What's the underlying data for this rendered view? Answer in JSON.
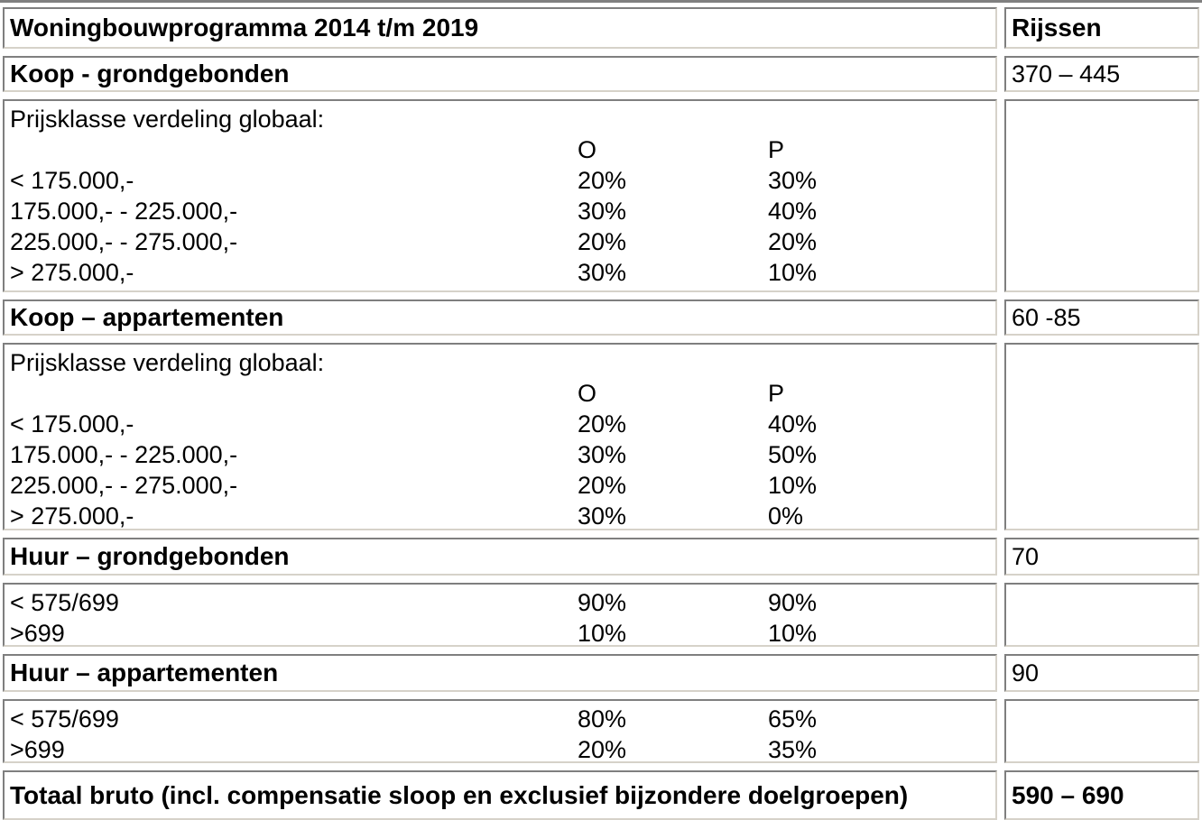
{
  "title_row": {
    "title": "Woningbouwprogramma 2014 t/m 2019",
    "region": "Rijssen"
  },
  "sections": [
    {
      "header": "Koop - grondgebonden",
      "value": "370 – 445",
      "detail": {
        "intro": "Prijsklasse verdeling globaal:",
        "col_o": "O",
        "col_p": "P",
        "rows": [
          {
            "label": "< 175.000,-",
            "o": "20%",
            "p": "30%"
          },
          {
            "label": "175.000,- - 225.000,-",
            "o": "30%",
            "p": "40%"
          },
          {
            "label": "225.000,- - 275.000,-",
            "o": "20%",
            "p": "20%"
          },
          {
            "label": "> 275.000,-",
            "o": "30%",
            "p": "10%"
          }
        ]
      }
    },
    {
      "header": "Koop – appartementen",
      "value": "60 -85",
      "detail": {
        "intro": "Prijsklasse verdeling globaal:",
        "col_o": "O",
        "col_p": "P",
        "rows": [
          {
            "label": "< 175.000,-",
            "o": "20%",
            "p": "40%"
          },
          {
            "label": "175.000,- - 225.000,-",
            "o": "30%",
            "p": "50%"
          },
          {
            "label": "225.000,- - 275.000,-",
            "o": "20%",
            "p": "10%"
          },
          {
            "label": "> 275.000,-",
            "o": "30%",
            "p": "0%"
          }
        ]
      }
    },
    {
      "header": "Huur – grondgebonden",
      "value": "70",
      "detail": {
        "rows": [
          {
            "label": "< 575/699",
            "o": "90%",
            "p": "90%"
          },
          {
            "label": ">699",
            "o": "10%",
            "p": "10%"
          }
        ]
      }
    },
    {
      "header": "Huur – appartementen",
      "value": "90",
      "detail": {
        "rows": [
          {
            "label": "< 575/699",
            "o": "80%",
            "p": "65%"
          },
          {
            "label": ">699",
            "o": "20%",
            "p": "35%"
          }
        ]
      }
    }
  ],
  "total_row": {
    "label": "Totaal bruto (incl. compensatie sloop en exclusief bijzondere doelgroepen)",
    "value": "590 – 690"
  },
  "colors": {
    "border_dark": "#7f7f7f",
    "border_light": "#d6d2c9",
    "text": "#000000",
    "background": "#ffffff"
  }
}
